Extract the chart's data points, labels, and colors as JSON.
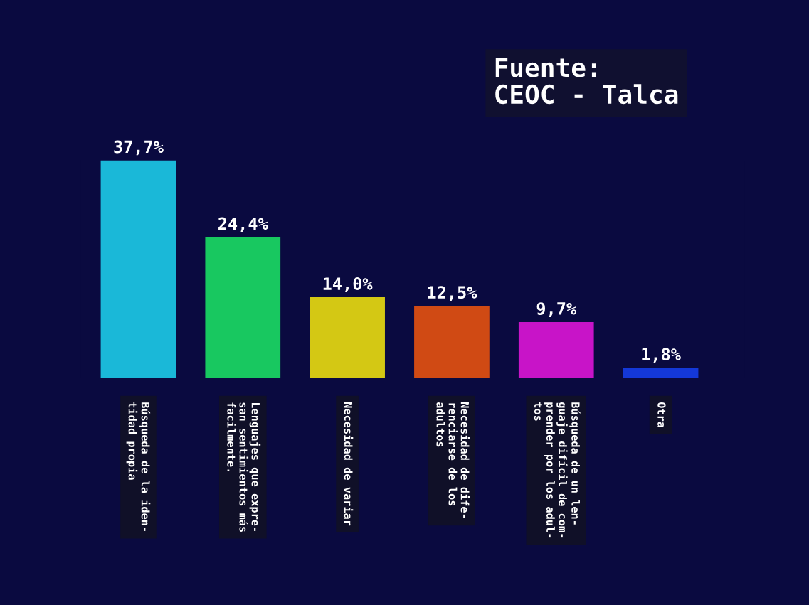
{
  "chart_data": {
    "type": "bar",
    "categories": [
      "Búsqueda de la iden-\ntidad propia",
      "Lenguajes que expre-\nsan sentimientos más\nfacilmente.",
      "Necesidad de variar",
      "Necesidad de dife-\nrenciarse de los\nadultos",
      "Búsqueda de un len-\nguaje difícil de com-\nprender por los adul-\ntos",
      "Otra"
    ],
    "values": [
      37.7,
      24.4,
      14.0,
      12.5,
      9.7,
      1.8
    ],
    "colors": [
      "#1ab8d8",
      "#18c860",
      "#d4c814",
      "#d04a14",
      "#c814c8",
      "#1438d8"
    ],
    "value_labels": [
      "37,7%",
      "24,4%",
      "14,0%",
      "12,5%",
      "9,7%",
      "1,8%"
    ],
    "annotations": [
      "Fuente:\nCEOC - Talca"
    ],
    "grid": false,
    "legend": false,
    "tick_labels": "x"
  }
}
